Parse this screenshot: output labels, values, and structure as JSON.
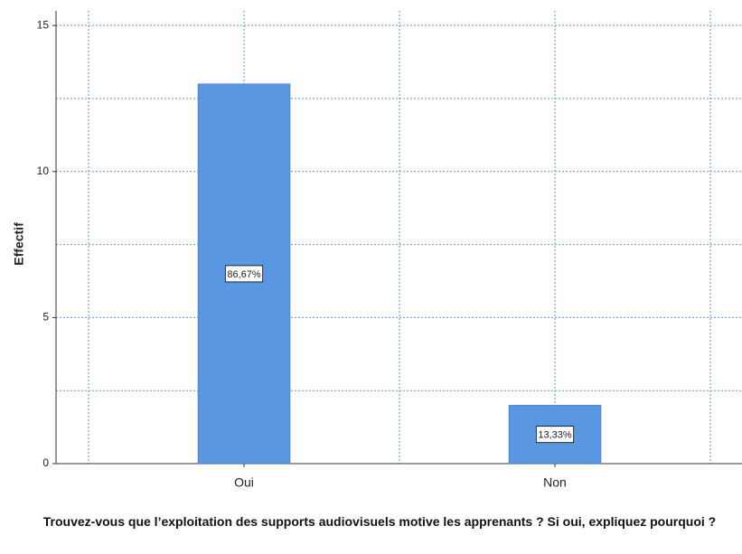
{
  "chart_data": {
    "type": "bar",
    "categories": [
      "Oui",
      "Non"
    ],
    "values": [
      13,
      2
    ],
    "percent_labels": [
      "86,67%",
      "13,33%"
    ],
    "color": "#5a97e3",
    "ylabel": "Effectif",
    "xlabel": "Trouvez-vous que l’exploitation des supports audiovisuels motive les apprenants ? Si oui, expliquez pourquoi ?",
    "ylim": [
      0,
      15.5
    ],
    "yticks": [
      0,
      5,
      10,
      15
    ],
    "minor_yticks": [
      2.5,
      7.5,
      12.5
    ],
    "grid": true
  }
}
